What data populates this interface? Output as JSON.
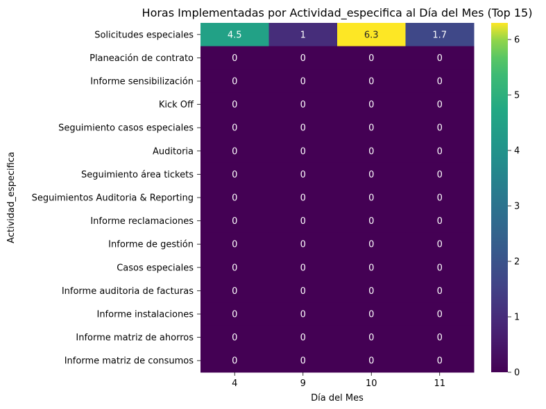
{
  "chart_data": {
    "type": "heatmap",
    "title": "Horas Implementadas por Actividad_especifica al Día del Mes (Top 15)",
    "xlabel": "Día del Mes",
    "ylabel": "Actividad_especifica",
    "x_categories": [
      "4",
      "9",
      "10",
      "11"
    ],
    "y_categories": [
      "Solicitudes especiales",
      "Planeación de contrato",
      "Informe sensibilización",
      "Kick Off",
      "Seguimiento casos especiales",
      "Auditoria",
      "Seguimiento área tickets",
      "Seguimientos Auditoria & Reporting",
      "Informe reclamaciones",
      "Informe de gestión",
      "Casos especiales",
      "Informe auditoria de facturas",
      "Informe instalaciones",
      "Informe matriz de ahorros",
      "Informe matriz de consumos"
    ],
    "values": [
      [
        4.5,
        1,
        6.3,
        1.7
      ],
      [
        0,
        0,
        0,
        0
      ],
      [
        0,
        0,
        0,
        0
      ],
      [
        0,
        0,
        0,
        0
      ],
      [
        0,
        0,
        0,
        0
      ],
      [
        0,
        0,
        0,
        0
      ],
      [
        0,
        0,
        0,
        0
      ],
      [
        0,
        0,
        0,
        0
      ],
      [
        0,
        0,
        0,
        0
      ],
      [
        0,
        0,
        0,
        0
      ],
      [
        0,
        0,
        0,
        0
      ],
      [
        0,
        0,
        0,
        0
      ],
      [
        0,
        0,
        0,
        0
      ],
      [
        0,
        0,
        0,
        0
      ],
      [
        0,
        0,
        0,
        0
      ]
    ],
    "colormap": "viridis",
    "colorbar": {
      "min": 0,
      "max": 6.3,
      "ticks": [
        0,
        1,
        2,
        3,
        4,
        5,
        6
      ]
    },
    "annotated": true
  }
}
